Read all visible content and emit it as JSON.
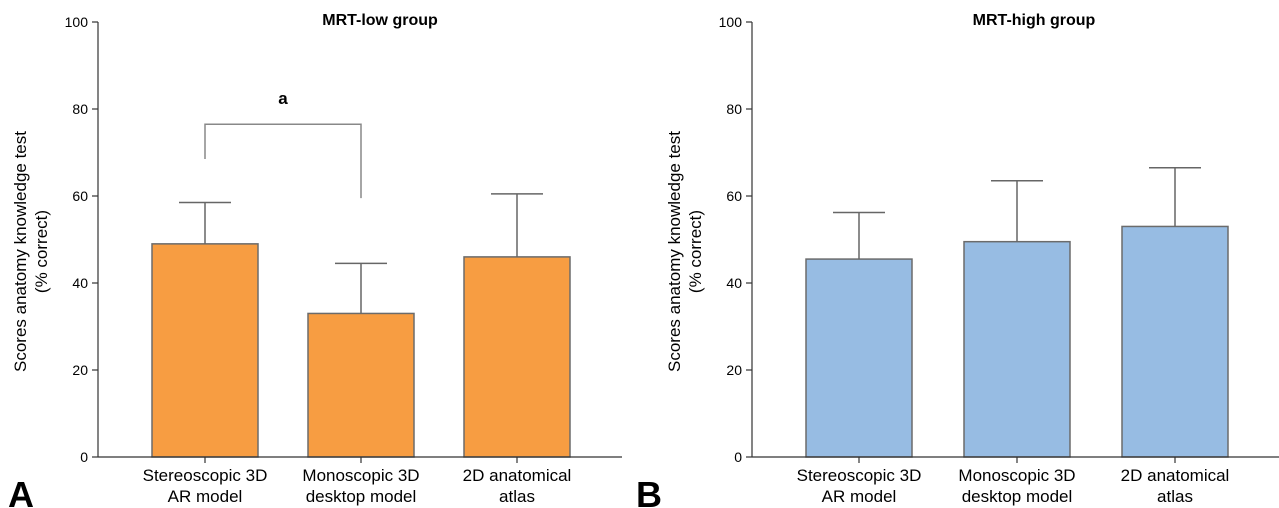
{
  "chart_data": [
    {
      "type": "bar",
      "panel": "A",
      "title": "MRT-low group",
      "ylabel": [
        "Scores anatomy knowledge test",
        "(% correct)"
      ],
      "ylim": [
        0,
        100
      ],
      "yticks": [
        0,
        20,
        40,
        60,
        80,
        100
      ],
      "categories": [
        [
          "Stereoscopic 3D",
          "AR model"
        ],
        [
          "Monoscopic 3D",
          "desktop model"
        ],
        [
          "2D anatomical",
          "atlas"
        ]
      ],
      "values": [
        49,
        33,
        46
      ],
      "errors": [
        9.5,
        11.5,
        14.5
      ],
      "color": "#F79D42",
      "annotation": {
        "text": "a",
        "between": [
          0,
          1
        ],
        "y": 76.5
      }
    },
    {
      "type": "bar",
      "panel": "B",
      "title": "MRT-high group",
      "ylabel": [
        "Scores anatomy knowledge test",
        "(% correct)"
      ],
      "ylim": [
        0,
        100
      ],
      "yticks": [
        0,
        20,
        40,
        60,
        80,
        100
      ],
      "categories": [
        [
          "Stereoscopic 3D",
          "AR model"
        ],
        [
          "Monoscopic 3D",
          "desktop model"
        ],
        [
          "2D anatomical",
          "atlas"
        ]
      ],
      "values": [
        45.5,
        49.5,
        53
      ],
      "errors": [
        10.7,
        14,
        13.5
      ],
      "color": "#97BCE3"
    }
  ]
}
